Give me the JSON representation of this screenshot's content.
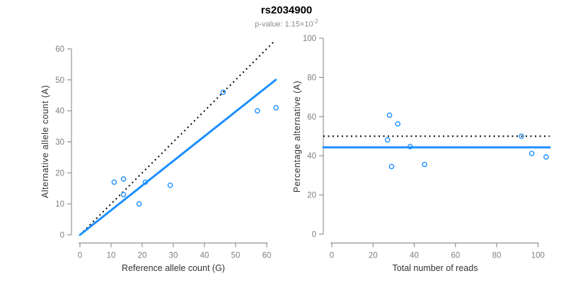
{
  "header": {
    "title": "rs2034900",
    "pvalue_label": "p-value: 1.15×10",
    "pvalue_exponent": "-2"
  },
  "colors": {
    "accent_blue": "#1E90FF",
    "identity_black": "#000000",
    "axis_line": "#808080",
    "tick_label": "#7f7f7f",
    "axis_title": "#333333",
    "subtitle": "#8c8c8c"
  },
  "chart_data": [
    {
      "type": "scatter",
      "name": "allele-counts-scatter",
      "xlabel": "Reference allele count (G)",
      "ylabel": "Alternative allele count (A)",
      "xlim": [
        0,
        63
      ],
      "ylim": [
        0,
        63
      ],
      "xticks": [
        0,
        10,
        20,
        30,
        40,
        50,
        60
      ],
      "yticks": [
        0,
        10,
        20,
        30,
        40,
        50,
        60
      ],
      "grid": false,
      "legend": null,
      "points": [
        [
          11,
          17
        ],
        [
          14,
          18
        ],
        [
          14,
          13
        ],
        [
          19,
          10
        ],
        [
          21,
          17
        ],
        [
          29,
          16
        ],
        [
          46,
          46
        ],
        [
          57,
          40
        ],
        [
          63,
          41
        ]
      ],
      "lines": [
        {
          "name": "identity-line",
          "style": "dotted",
          "color": "#000000",
          "from": [
            0,
            0
          ],
          "to": [
            62.7,
            62.7
          ]
        },
        {
          "name": "fit-line",
          "style": "solid",
          "color": "#1E90FF",
          "from": [
            0,
            0
          ],
          "to": [
            62.9,
            50.0
          ]
        }
      ]
    },
    {
      "type": "scatter",
      "name": "percentage-vs-reads-scatter",
      "xlabel": "Total number of reads",
      "ylabel": "Percentage alternative (A)",
      "xlim": [
        0,
        105
      ],
      "ylim": [
        0,
        100
      ],
      "xticks": [
        0,
        20,
        40,
        60,
        80,
        100
      ],
      "yticks": [
        0,
        20,
        40,
        60,
        80,
        100
      ],
      "grid": false,
      "legend": null,
      "points": [
        [
          28,
          60.7
        ],
        [
          32,
          56.3
        ],
        [
          27,
          48.1
        ],
        [
          38,
          44.7
        ],
        [
          29,
          34.5
        ],
        [
          45,
          35.6
        ],
        [
          92,
          50.0
        ],
        [
          97,
          41.2
        ],
        [
          104,
          39.4
        ]
      ],
      "lines": [
        {
          "name": "expected-50pct-line",
          "style": "dotted",
          "color": "#000000",
          "h": 50
        },
        {
          "name": "mean-percentage-line",
          "style": "solid",
          "color": "#1E90FF",
          "h": 44.3
        }
      ]
    }
  ]
}
